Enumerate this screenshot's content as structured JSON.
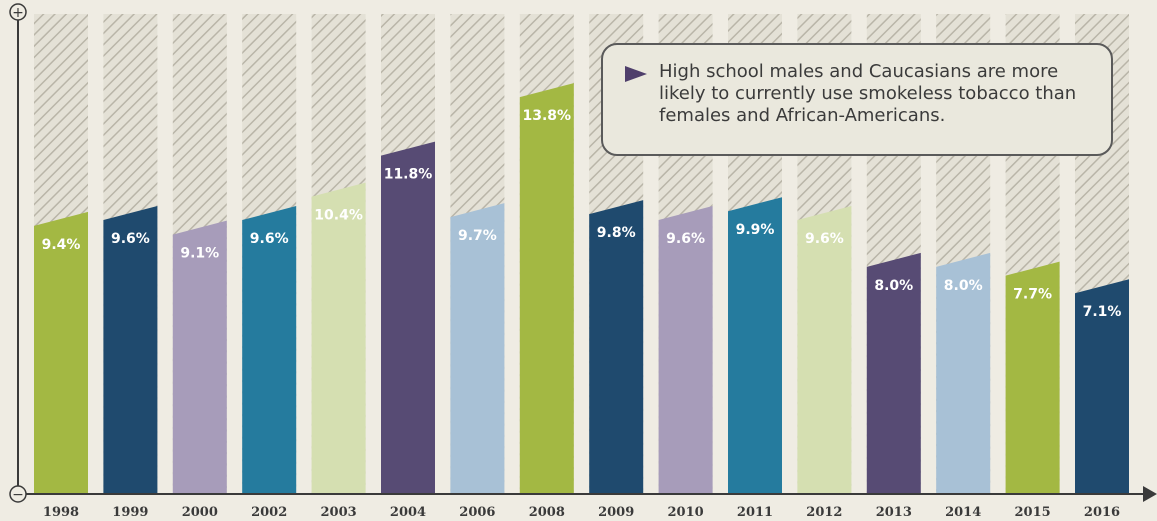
{
  "chart_data": {
    "type": "bar",
    "categories": [
      "1998",
      "1999",
      "2000",
      "2002",
      "2003",
      "2004",
      "2006",
      "2008",
      "2009",
      "2010",
      "2011",
      "2012",
      "2013",
      "2014",
      "2015",
      "2016"
    ],
    "values": [
      9.4,
      9.6,
      9.1,
      9.6,
      10.4,
      11.8,
      9.7,
      13.8,
      9.8,
      9.6,
      9.9,
      9.6,
      8.0,
      8.0,
      7.7,
      7.1
    ],
    "value_labels": [
      "9.4%",
      "9.6%",
      "9.1%",
      "9.6%",
      "10.4%",
      "11.8%",
      "9.7%",
      "13.8%",
      "9.8%",
      "9.6%",
      "9.9%",
      "9.6%",
      "8.0%",
      "8.0%",
      "7.7%",
      "7.1%"
    ],
    "colors": [
      "#a3b843",
      "#1f4a6e",
      "#a79cba",
      "#257b9e",
      "#d5dfb1",
      "#574b74",
      "#a8c1d6",
      "#a3b843",
      "#1f4a6e",
      "#a79cba",
      "#257b9e",
      "#d5dfb1",
      "#574b74",
      "#a8c1d6",
      "#a3b843",
      "#1f4a6e"
    ],
    "label_colors": [
      "#ffffff",
      "#ffffff",
      "#ffffff",
      "#ffffff",
      "#ffffff",
      "#ffffff",
      "#ffffff",
      "#ffffff",
      "#ffffff",
      "#ffffff",
      "#ffffff",
      "#ffffff",
      "#ffffff",
      "#ffffff",
      "#ffffff",
      "#ffffff"
    ],
    "ylim": [
      0,
      16.4
    ],
    "axis_top_symbol": "+",
    "axis_bottom_symbol": "−"
  },
  "callout": {
    "text": "High school males and Caucasians are more likely to currently use smokeless tobacco than females and African-Americans."
  }
}
